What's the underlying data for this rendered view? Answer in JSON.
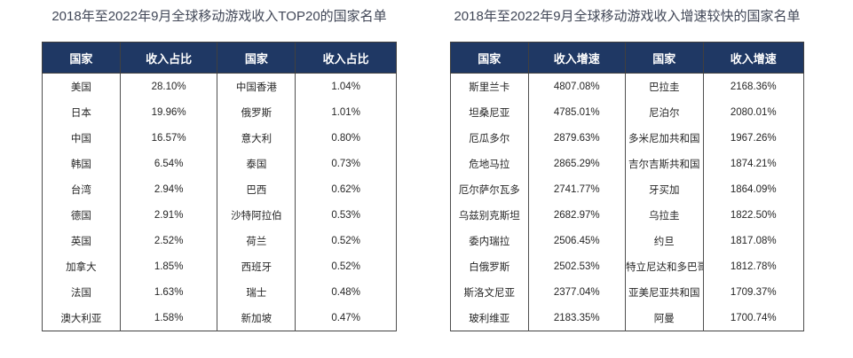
{
  "theme": {
    "page_bg": "#ffffff",
    "header_bg": "#1f3864",
    "header_text": "#ffffff",
    "title_color": "#414757",
    "body_text": "#262626",
    "border_dark": "#404040",
    "border_mid": "#4f4f4f"
  },
  "tables": [
    {
      "title": "2018年至2022年9月全球移动游戏收入TOP20的国家名单",
      "columns": [
        "国家",
        "收入占比",
        "国家",
        "收入占比"
      ],
      "rows": [
        [
          "美国",
          "28.10%",
          "中国香港",
          "1.04%"
        ],
        [
          "日本",
          "19.96%",
          "俄罗斯",
          "1.01%"
        ],
        [
          "中国",
          "16.57%",
          "意大利",
          "0.80%"
        ],
        [
          "韩国",
          "6.54%",
          "泰国",
          "0.73%"
        ],
        [
          "台湾",
          "2.94%",
          "巴西",
          "0.62%"
        ],
        [
          "德国",
          "2.91%",
          "沙特阿拉伯",
          "0.53%"
        ],
        [
          "英国",
          "2.52%",
          "荷兰",
          "0.52%"
        ],
        [
          "加拿大",
          "1.85%",
          "西班牙",
          "0.52%"
        ],
        [
          "法国",
          "1.63%",
          "瑞士",
          "0.48%"
        ],
        [
          "澳大利亚",
          "1.58%",
          "新加坡",
          "0.47%"
        ]
      ]
    },
    {
      "title": "2018年至2022年9月全球移动游戏收入增速较快的国家名单",
      "columns": [
        "国家",
        "收入增速",
        "国家",
        "收入增速"
      ],
      "rows": [
        [
          "斯里兰卡",
          "4807.08%",
          "巴拉圭",
          "2168.36%"
        ],
        [
          "坦桑尼亚",
          "4785.01%",
          "尼泊尔",
          "2080.01%"
        ],
        [
          "厄瓜多尔",
          "2879.63%",
          "多米尼加共和国",
          "1967.26%"
        ],
        [
          "危地马拉",
          "2865.29%",
          "吉尔吉斯共和国",
          "1874.21%"
        ],
        [
          "厄尔萨尔瓦多",
          "2741.77%",
          "牙买加",
          "1864.09%"
        ],
        [
          "乌兹别克斯坦",
          "2682.97%",
          "乌拉圭",
          "1822.50%"
        ],
        [
          "委内瑞拉",
          "2506.45%",
          "约旦",
          "1817.08%"
        ],
        [
          "白俄罗斯",
          "2502.53%",
          "特立尼达和多巴哥",
          "1812.78%"
        ],
        [
          "斯洛文尼亚",
          "2377.04%",
          "亚美尼亚共和国",
          "1709.37%"
        ],
        [
          "玻利维亚",
          "2183.35%",
          "阿曼",
          "1700.74%"
        ]
      ]
    }
  ],
  "chart_data": [
    {
      "type": "table",
      "title": "2018年至2022年9月全球移动游戏收入TOP20的国家名单",
      "columns": [
        "国家",
        "收入占比",
        "国家",
        "收入占比"
      ],
      "rows": [
        [
          "美国",
          "28.10%",
          "中国香港",
          "1.04%"
        ],
        [
          "日本",
          "19.96%",
          "俄罗斯",
          "1.01%"
        ],
        [
          "中国",
          "16.57%",
          "意大利",
          "0.80%"
        ],
        [
          "韩国",
          "6.54%",
          "泰国",
          "0.73%"
        ],
        [
          "台湾",
          "2.94%",
          "巴西",
          "0.62%"
        ],
        [
          "德国",
          "2.91%",
          "沙特阿拉伯",
          "0.53%"
        ],
        [
          "英国",
          "2.52%",
          "荷兰",
          "0.52%"
        ],
        [
          "加拿大",
          "1.85%",
          "西班牙",
          "0.52%"
        ],
        [
          "法国",
          "1.63%",
          "瑞士",
          "0.48%"
        ],
        [
          "澳大利亚",
          "1.58%",
          "新加坡",
          "0.47%"
        ]
      ]
    },
    {
      "type": "table",
      "title": "2018年至2022年9月全球移动游戏收入增速较快的国家名单",
      "columns": [
        "国家",
        "收入增速",
        "国家",
        "收入增速"
      ],
      "rows": [
        [
          "斯里兰卡",
          "4807.08%",
          "巴拉圭",
          "2168.36%"
        ],
        [
          "坦桑尼亚",
          "4785.01%",
          "尼泊尔",
          "2080.01%"
        ],
        [
          "厄瓜多尔",
          "2879.63%",
          "多米尼加共和国",
          "1967.26%"
        ],
        [
          "危地马拉",
          "2865.29%",
          "吉尔吉斯共和国",
          "1874.21%"
        ],
        [
          "厄尔萨尔瓦多",
          "2741.77%",
          "牙买加",
          "1864.09%"
        ],
        [
          "乌兹别克斯坦",
          "2682.97%",
          "乌拉圭",
          "1822.50%"
        ],
        [
          "委内瑞拉",
          "2506.45%",
          "约旦",
          "1817.08%"
        ],
        [
          "白俄罗斯",
          "2502.53%",
          "特立尼达和多巴哥",
          "1812.78%"
        ],
        [
          "斯洛文尼亚",
          "2377.04%",
          "亚美尼亚共和国",
          "1709.37%"
        ],
        [
          "玻利维亚",
          "2183.35%",
          "阿曼",
          "1700.74%"
        ]
      ]
    }
  ]
}
